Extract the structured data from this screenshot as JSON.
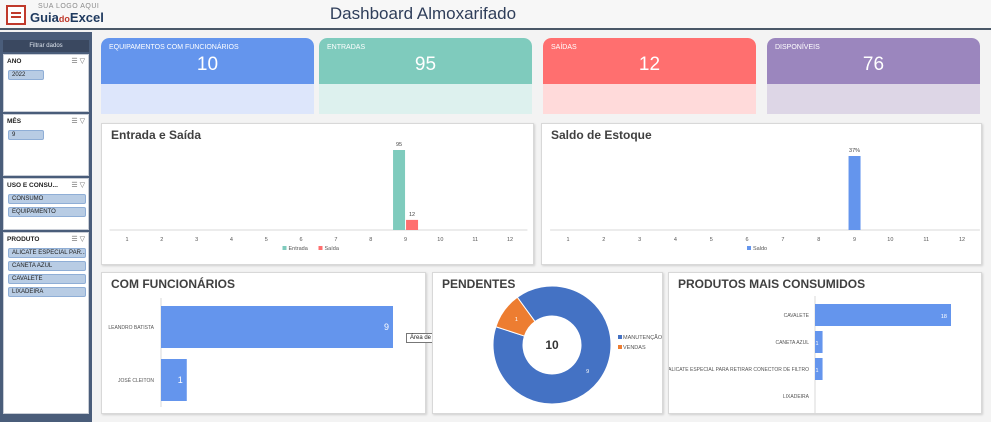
{
  "header": {
    "title": "Dashboard Almoxarifado",
    "logo_top": "SUA LOGO AQUI",
    "logo_main_a": "Guia",
    "logo_main_b": "do",
    "logo_main_c": "Excel"
  },
  "sidebar": {
    "heading": "Filtrar dados",
    "slicers": [
      {
        "title": "ANO",
        "items": [
          "2022"
        ]
      },
      {
        "title": "MÊS",
        "items": [
          "9"
        ]
      },
      {
        "title": "USO E CONSU...",
        "items": [
          "CONSUMO",
          "EQUIPAMENTO"
        ]
      },
      {
        "title": "PRODUTO",
        "items": [
          "ALICATE ESPECIAL PAR...",
          "CANETA AZUL",
          "CAVALETE",
          "LIXADEIRA"
        ]
      }
    ]
  },
  "cards": [
    {
      "label": "EQUIPAMENTOS COM FUNCIONÁRIOS",
      "value": "10",
      "color": "#6495ed",
      "light": "#dde6fb"
    },
    {
      "label": "ENTRADAS",
      "value": "95",
      "color": "#7fcbbd",
      "light": "#ddf1ee"
    },
    {
      "label": "SAÍDAS",
      "value": "12",
      "color": "#ff6f6f",
      "light": "#ffdada"
    },
    {
      "label": "DISPONÍVEIS",
      "value": "76",
      "color": "#9b86be",
      "light": "#ddd6e6"
    }
  ],
  "tooltip": "Área de Plotagem",
  "chart_data": [
    {
      "type": "bar",
      "title": "Entrada e Saída",
      "categories": [
        "1",
        "2",
        "3",
        "4",
        "5",
        "6",
        "7",
        "8",
        "9",
        "10",
        "11",
        "12"
      ],
      "series": [
        {
          "name": "Entrada",
          "values": [
            0,
            0,
            0,
            0,
            0,
            0,
            0,
            0,
            95,
            0,
            0,
            0
          ],
          "color": "#7fcbbd"
        },
        {
          "name": "Saída",
          "values": [
            0,
            0,
            0,
            0,
            0,
            0,
            0,
            0,
            12,
            0,
            0,
            0
          ],
          "color": "#ff6f6f"
        }
      ],
      "data_labels": [
        "95",
        "12"
      ],
      "legend": "bottom",
      "grid": false
    },
    {
      "type": "bar",
      "title": "Saldo de Estoque",
      "categories": [
        "1",
        "2",
        "3",
        "4",
        "5",
        "6",
        "7",
        "8",
        "9",
        "10",
        "11",
        "12"
      ],
      "series": [
        {
          "name": "Saldo",
          "values": [
            0,
            0,
            0,
            0,
            0,
            0,
            0,
            0,
            37,
            0,
            0,
            0
          ],
          "color": "#6495ed"
        }
      ],
      "data_labels": [
        "37%"
      ],
      "legend": "bottom",
      "grid": false
    },
    {
      "type": "bar",
      "orientation": "horizontal",
      "title": "COM FUNCIONÁRIOS",
      "categories": [
        "LEANDRO BATISTA",
        "JOSÉ CLEITON"
      ],
      "values": [
        9,
        1
      ],
      "color": "#6495ed"
    },
    {
      "type": "pie",
      "title": "PENDENTES",
      "center_label": "10",
      "slices": [
        {
          "name": "MANUTENÇÃO",
          "value": 9,
          "color": "#4472c4"
        },
        {
          "name": "VENDAS",
          "value": 1,
          "color": "#ed7d31"
        }
      ],
      "legend": "right"
    },
    {
      "type": "bar",
      "orientation": "horizontal",
      "title": "PRODUTOS MAIS CONSUMIDOS",
      "categories": [
        "CAVALETE",
        "CANETA AZUL",
        "ALICATE ESPECIAL PARA RETIRAR CONECTOR DE FILTRO",
        "LIXADEIRA"
      ],
      "values": [
        18,
        1,
        1,
        0
      ],
      "color": "#6495ed"
    }
  ]
}
